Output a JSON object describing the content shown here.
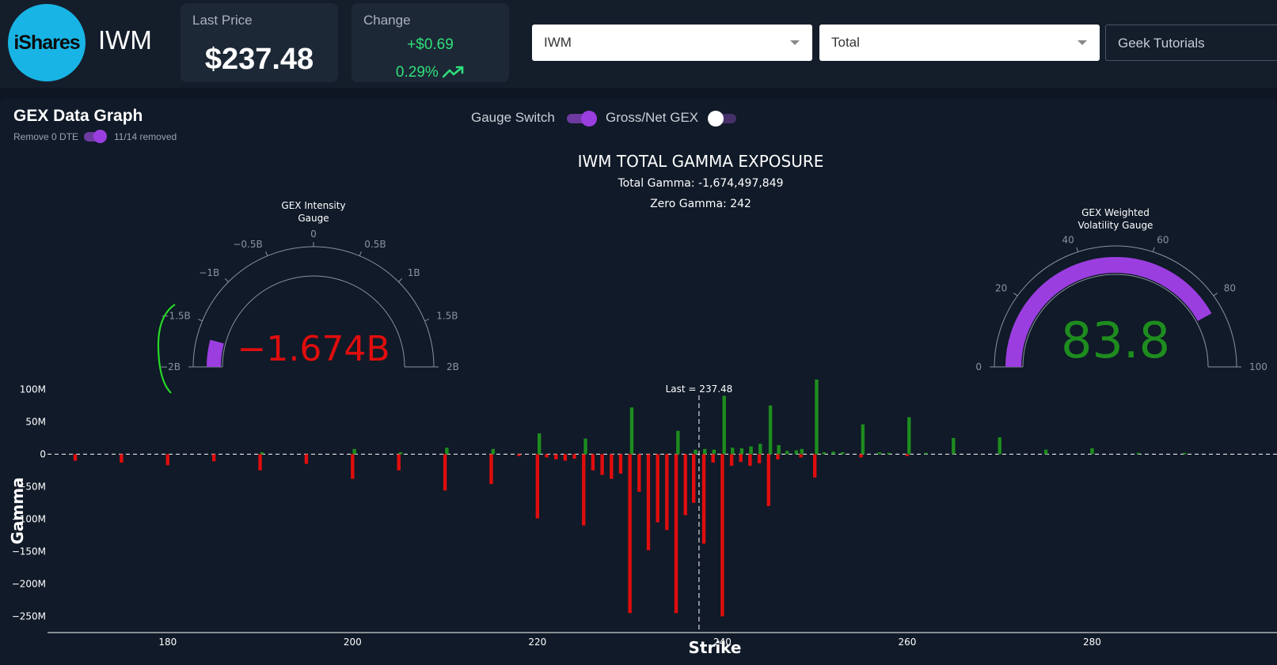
{
  "header": {
    "logo_text": "iShares",
    "ticker": "IWM",
    "last_price_label": "Last Price",
    "last_price": "$237.48",
    "change_label": "Change",
    "change_amount": "+$0.69",
    "change_percent": "0.29%",
    "ticker_select": "IWM",
    "type_select": "Total",
    "tutorials_label": "Geek Tutorials"
  },
  "panel": {
    "title": "GEX Data Graph",
    "remove_dte_label": "Remove 0 DTE",
    "removed_status": "11/14 removed",
    "gauge_switch_label": "Gauge Switch",
    "gross_net_label": "Gross/Net GEX"
  },
  "colors": {
    "positive": "#1e8c1e",
    "negative": "#e00d0d",
    "accent": "#9b3ee0",
    "up": "#2ee07a"
  },
  "chart_data": {
    "type": "bar",
    "title": "IWM TOTAL GAMMA EXPOSURE",
    "subtitle_total": "Total Gamma: -1,674,497,849",
    "subtitle_zero": "Zero Gamma: 242",
    "xlabel": "Strike",
    "ylabel": "Gamma",
    "xlim": [
      167,
      300
    ],
    "ylim": [
      -275,
      115
    ],
    "x_ticks": [
      180,
      200,
      220,
      240,
      260,
      280
    ],
    "y_ticks": [
      {
        "v": 100,
        "label": "100M"
      },
      {
        "v": 50,
        "label": "50M"
      },
      {
        "v": 0,
        "label": "0"
      },
      {
        "v": -50,
        "label": "−50M"
      },
      {
        "v": -100,
        "label": "−100M"
      },
      {
        "v": -150,
        "label": "−150M"
      },
      {
        "v": -200,
        "label": "−200M"
      },
      {
        "v": -250,
        "label": "−250M"
      }
    ],
    "last_price_line": {
      "x": 237.48,
      "label": "Last = 237.48"
    },
    "unit": "M",
    "bars": [
      {
        "x": 170,
        "v": -10
      },
      {
        "x": 175,
        "v": -13
      },
      {
        "x": 180,
        "v": -17
      },
      {
        "x": 185,
        "v": -11
      },
      {
        "x": 190,
        "v": -25
      },
      {
        "x": 190.2,
        "v": 3
      },
      {
        "x": 195,
        "v": -15
      },
      {
        "x": 200,
        "v": -38
      },
      {
        "x": 200.2,
        "v": 8
      },
      {
        "x": 205,
        "v": -25
      },
      {
        "x": 205.2,
        "v": 3
      },
      {
        "x": 210,
        "v": -56
      },
      {
        "x": 210.2,
        "v": 10
      },
      {
        "x": 215,
        "v": -46
      },
      {
        "x": 215.2,
        "v": 8
      },
      {
        "x": 218,
        "v": -3
      },
      {
        "x": 220,
        "v": -99
      },
      {
        "x": 220.2,
        "v": 32
      },
      {
        "x": 221,
        "v": -5
      },
      {
        "x": 222,
        "v": -8
      },
      {
        "x": 223,
        "v": -10
      },
      {
        "x": 224,
        "v": -7
      },
      {
        "x": 225,
        "v": -110
      },
      {
        "x": 225.2,
        "v": 24
      },
      {
        "x": 226,
        "v": -25
      },
      {
        "x": 227,
        "v": -32
      },
      {
        "x": 228,
        "v": -38
      },
      {
        "x": 229,
        "v": -30
      },
      {
        "x": 230,
        "v": -245
      },
      {
        "x": 230.2,
        "v": 72
      },
      {
        "x": 231,
        "v": -58
      },
      {
        "x": 232,
        "v": -148
      },
      {
        "x": 233,
        "v": -105
      },
      {
        "x": 234,
        "v": -117
      },
      {
        "x": 235,
        "v": -245
      },
      {
        "x": 235.2,
        "v": 36
      },
      {
        "x": 236,
        "v": -94
      },
      {
        "x": 236.9,
        "v": -75
      },
      {
        "x": 237.1,
        "v": 7
      },
      {
        "x": 238,
        "v": -138
      },
      {
        "x": 238.1,
        "v": 8
      },
      {
        "x": 239,
        "v": -13
      },
      {
        "x": 239.1,
        "v": 7
      },
      {
        "x": 240,
        "v": -250
      },
      {
        "x": 240.2,
        "v": 90
      },
      {
        "x": 241,
        "v": -18
      },
      {
        "x": 241.1,
        "v": 10
      },
      {
        "x": 242,
        "v": -12
      },
      {
        "x": 242.1,
        "v": 9
      },
      {
        "x": 243,
        "v": -18
      },
      {
        "x": 243.1,
        "v": 12
      },
      {
        "x": 244,
        "v": -14
      },
      {
        "x": 244.1,
        "v": 16
      },
      {
        "x": 245,
        "v": -80
      },
      {
        "x": 245.2,
        "v": 75
      },
      {
        "x": 246,
        "v": -8
      },
      {
        "x": 246.1,
        "v": 14
      },
      {
        "x": 247,
        "v": 5
      },
      {
        "x": 248,
        "v": 6
      },
      {
        "x": 248.5,
        "v": -5
      },
      {
        "x": 248.6,
        "v": 8
      },
      {
        "x": 250,
        "v": -36
      },
      {
        "x": 250.2,
        "v": 115
      },
      {
        "x": 251,
        "v": 3
      },
      {
        "x": 252,
        "v": 4
      },
      {
        "x": 253,
        "v": 3
      },
      {
        "x": 255,
        "v": -5
      },
      {
        "x": 255.2,
        "v": 46
      },
      {
        "x": 257,
        "v": 3
      },
      {
        "x": 258,
        "v": 2
      },
      {
        "x": 260,
        "v": -3
      },
      {
        "x": 260.2,
        "v": 57
      },
      {
        "x": 262,
        "v": 2
      },
      {
        "x": 265,
        "v": 25
      },
      {
        "x": 270,
        "v": 26
      },
      {
        "x": 275,
        "v": 7
      },
      {
        "x": 280,
        "v": 9
      },
      {
        "x": 285,
        "v": 2
      },
      {
        "x": 290,
        "v": 2
      }
    ]
  },
  "intensity_gauge": {
    "title_line1": "GEX Intensity",
    "title_line2": "Gauge",
    "value_display": "−1.674B",
    "value": -1.674,
    "min": -2,
    "max": 2,
    "ticks": [
      {
        "v": -2,
        "label": "−2B"
      },
      {
        "v": -1.5,
        "label": "−1.5B"
      },
      {
        "v": -1,
        "label": "−1B"
      },
      {
        "v": -0.5,
        "label": "−0.5B"
      },
      {
        "v": 0,
        "label": "0"
      },
      {
        "v": 0.5,
        "label": "0.5B"
      },
      {
        "v": 1,
        "label": "1B"
      },
      {
        "v": 1.5,
        "label": "1.5B"
      },
      {
        "v": 2,
        "label": "2B"
      }
    ]
  },
  "volatility_gauge": {
    "title_line1": "GEX Weighted",
    "title_line2": "Volatility Gauge",
    "value_display": "83.8",
    "value": 83.8,
    "min": 0,
    "max": 100,
    "ticks": [
      {
        "v": 0,
        "label": "0"
      },
      {
        "v": 20,
        "label": "20"
      },
      {
        "v": 40,
        "label": "40"
      },
      {
        "v": 60,
        "label": "60"
      },
      {
        "v": 80,
        "label": "80"
      },
      {
        "v": 100,
        "label": "100"
      }
    ]
  }
}
